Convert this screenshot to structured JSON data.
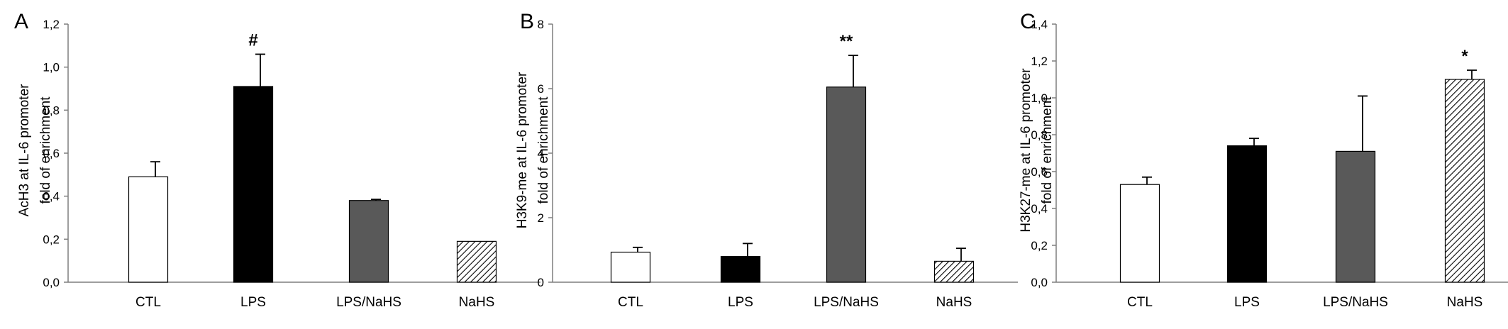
{
  "chart_data": [
    {
      "type": "bar",
      "panel_label": "A",
      "ylabel": [
        "AcH3 at IL-6 promoter",
        "fold of enrichment"
      ],
      "categories": [
        "CTL",
        "LPS",
        "LPS/NaHS",
        "NaHS"
      ],
      "values": [
        0.49,
        0.91,
        0.38,
        0.19
      ],
      "errors": [
        0.07,
        0.15,
        0.005,
        0.0
      ],
      "significance": [
        "",
        "#",
        "",
        ""
      ],
      "ylim": [
        0,
        1.2
      ],
      "yticks": [
        "0,0",
        "0,2",
        "0,4",
        "0,6",
        "0,8",
        "1,0",
        "1,2"
      ],
      "bar_fills": [
        "white",
        "black",
        "gray",
        "hatched"
      ]
    },
    {
      "type": "bar",
      "panel_label": "B",
      "ylabel": [
        "H3K9-me at IL-6 promoter",
        "fold of enrichment"
      ],
      "categories": [
        "CTL",
        "LPS",
        "LPS/NaHS",
        "NaHS"
      ],
      "values": [
        0.93,
        0.8,
        6.05,
        0.65
      ],
      "errors": [
        0.15,
        0.4,
        0.98,
        0.4
      ],
      "significance": [
        "",
        "",
        "**",
        ""
      ],
      "ylim": [
        0,
        8
      ],
      "yticks": [
        "0",
        "2",
        "4",
        "6",
        "8"
      ],
      "bar_fills": [
        "white",
        "black",
        "gray",
        "hatched"
      ]
    },
    {
      "type": "bar",
      "panel_label": "C",
      "ylabel": [
        "H3K27-me at IL-6 promoter",
        "fold of enrichment"
      ],
      "categories": [
        "CTL",
        "LPS",
        "LPS/NaHS",
        "NaHS"
      ],
      "values": [
        0.53,
        0.74,
        0.71,
        1.1
      ],
      "errors": [
        0.04,
        0.04,
        0.3,
        0.05
      ],
      "significance": [
        "",
        "",
        "",
        "*"
      ],
      "ylim": [
        0,
        1.4
      ],
      "yticks": [
        "0,0",
        "0,2",
        "0,4",
        "0,6",
        "0,8",
        "1,0",
        "1,2",
        "1,4"
      ],
      "bar_fills": [
        "white",
        "black",
        "gray",
        "hatched"
      ]
    }
  ],
  "colors": {
    "axis": "#7f7f7f",
    "bar_outline": "#000000",
    "white_bar": "#ffffff",
    "black_bar": "#000000",
    "gray_bar": "#595959",
    "hatch_line": "#000000"
  }
}
